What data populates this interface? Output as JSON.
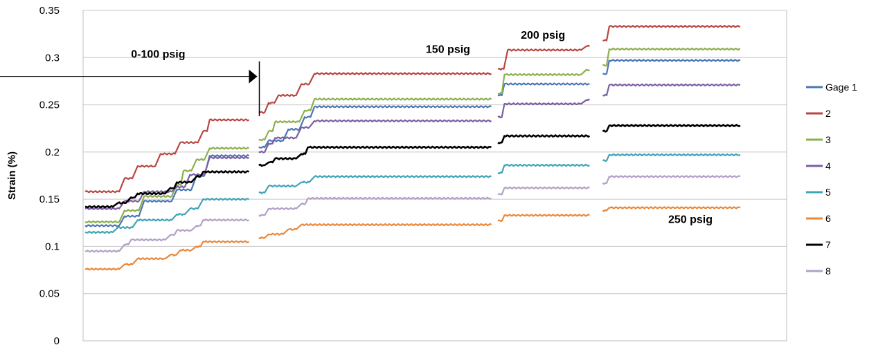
{
  "chart_data": {
    "type": "line",
    "title": "",
    "xlabel": "",
    "ylabel": "Strain (%)",
    "ylim": [
      0,
      0.35
    ],
    "yticks": [
      "0",
      "0.05",
      "0.1",
      "0.15",
      "0.2",
      "0.25",
      "0.3",
      "0.35"
    ],
    "grid": "horizontal",
    "legend_position": "right",
    "x_domain": [
      0,
      100
    ],
    "segments": [
      [
        0,
        25
      ],
      [
        26.5,
        62
      ],
      [
        63,
        77
      ],
      [
        79,
        100
      ]
    ],
    "annotations": [
      {
        "text": "0-100 psig",
        "x": 7,
        "y": 0.3
      },
      {
        "text": "150 psig",
        "x": 52,
        "y": 0.305
      },
      {
        "text": "200 psig",
        "x": 66.5,
        "y": 0.32
      },
      {
        "text": "250 psig",
        "x": 89,
        "y": 0.125
      }
    ],
    "series": [
      {
        "name": "Gage 1",
        "color": "#4a76b4",
        "steps": [
          [
            0,
            0.122
          ],
          [
            6,
            0.132
          ],
          [
            9,
            0.148
          ],
          [
            14,
            0.16
          ],
          [
            17,
            0.175
          ],
          [
            19,
            0.196
          ],
          [
            26.5,
            0.205
          ],
          [
            28,
            0.212
          ],
          [
            31,
            0.224
          ],
          [
            33.5,
            0.237
          ],
          [
            35,
            0.248
          ],
          [
            63,
            0.26
          ],
          [
            64,
            0.272
          ],
          [
            79,
            0.283
          ],
          [
            80,
            0.297
          ]
        ]
      },
      {
        "name": "2",
        "color": "#b84540",
        "steps": [
          [
            0,
            0.158
          ],
          [
            6,
            0.172
          ],
          [
            8,
            0.185
          ],
          [
            11.5,
            0.198
          ],
          [
            14.5,
            0.21
          ],
          [
            18,
            0.222
          ],
          [
            19,
            0.234
          ],
          [
            26.5,
            0.242
          ],
          [
            28,
            0.252
          ],
          [
            29.5,
            0.26
          ],
          [
            33,
            0.272
          ],
          [
            35,
            0.283
          ],
          [
            63,
            0.288
          ],
          [
            64.5,
            0.308
          ],
          [
            76.5,
            0.312
          ],
          [
            79,
            0.318
          ],
          [
            80,
            0.333
          ]
        ]
      },
      {
        "name": "3",
        "color": "#8daf4b",
        "steps": [
          [
            0,
            0.126
          ],
          [
            6,
            0.138
          ],
          [
            9,
            0.153
          ],
          [
            14,
            0.165
          ],
          [
            15,
            0.18
          ],
          [
            17,
            0.192
          ],
          [
            19,
            0.204
          ],
          [
            26.5,
            0.213
          ],
          [
            28,
            0.222
          ],
          [
            29,
            0.232
          ],
          [
            33.5,
            0.244
          ],
          [
            35,
            0.256
          ],
          [
            63,
            0.262
          ],
          [
            64,
            0.282
          ],
          [
            76.5,
            0.287
          ],
          [
            79,
            0.292
          ],
          [
            80,
            0.309
          ]
        ]
      },
      {
        "name": "4",
        "color": "#7b5ea3",
        "steps": [
          [
            0,
            0.14
          ],
          [
            6,
            0.148
          ],
          [
            9,
            0.158
          ],
          [
            14,
            0.163
          ],
          [
            16,
            0.176
          ],
          [
            19,
            0.194
          ],
          [
            26.5,
            0.2
          ],
          [
            28,
            0.209
          ],
          [
            29,
            0.215
          ],
          [
            33,
            0.226
          ],
          [
            35,
            0.233
          ],
          [
            63,
            0.237
          ],
          [
            64,
            0.251
          ],
          [
            76.5,
            0.255
          ],
          [
            79,
            0.26
          ],
          [
            80,
            0.271
          ]
        ]
      },
      {
        "name": "5",
        "color": "#3fa3b8",
        "steps": [
          [
            0,
            0.115
          ],
          [
            5,
            0.12
          ],
          [
            8,
            0.128
          ],
          [
            14,
            0.134
          ],
          [
            16,
            0.14
          ],
          [
            18,
            0.15
          ],
          [
            26.5,
            0.157
          ],
          [
            28,
            0.164
          ],
          [
            33,
            0.168
          ],
          [
            35,
            0.174
          ],
          [
            63,
            0.178
          ],
          [
            64,
            0.186
          ],
          [
            79,
            0.191
          ],
          [
            80,
            0.197
          ]
        ]
      },
      {
        "name": "6",
        "color": "#e9883a",
        "steps": [
          [
            0,
            0.076
          ],
          [
            6,
            0.081
          ],
          [
            8,
            0.087
          ],
          [
            13,
            0.091
          ],
          [
            14.5,
            0.096
          ],
          [
            17,
            0.1
          ],
          [
            18,
            0.105
          ],
          [
            26.5,
            0.109
          ],
          [
            28,
            0.113
          ],
          [
            31,
            0.118
          ],
          [
            33,
            0.123
          ],
          [
            63,
            0.127
          ],
          [
            64,
            0.133
          ],
          [
            79,
            0.138
          ],
          [
            80,
            0.141
          ]
        ]
      },
      {
        "name": "7",
        "color": "#000000",
        "steps": [
          [
            0,
            0.142
          ],
          [
            5,
            0.146
          ],
          [
            7,
            0.152
          ],
          [
            8,
            0.156
          ],
          [
            13,
            0.162
          ],
          [
            14,
            0.168
          ],
          [
            17,
            0.174
          ],
          [
            18,
            0.179
          ],
          [
            26.5,
            0.186
          ],
          [
            28,
            0.189
          ],
          [
            29,
            0.193
          ],
          [
            33,
            0.198
          ],
          [
            34,
            0.205
          ],
          [
            63,
            0.21
          ],
          [
            64,
            0.217
          ],
          [
            79,
            0.222
          ],
          [
            80,
            0.228
          ]
        ]
      },
      {
        "name": "8",
        "color": "#b2a1c7",
        "steps": [
          [
            0,
            0.095
          ],
          [
            6,
            0.102
          ],
          [
            7,
            0.107
          ],
          [
            13,
            0.112
          ],
          [
            14,
            0.117
          ],
          [
            17,
            0.122
          ],
          [
            18,
            0.128
          ],
          [
            26.5,
            0.133
          ],
          [
            28,
            0.14
          ],
          [
            33,
            0.145
          ],
          [
            34,
            0.151
          ],
          [
            63,
            0.155
          ],
          [
            64,
            0.162
          ],
          [
            79,
            0.167
          ],
          [
            80,
            0.174
          ]
        ]
      }
    ]
  }
}
